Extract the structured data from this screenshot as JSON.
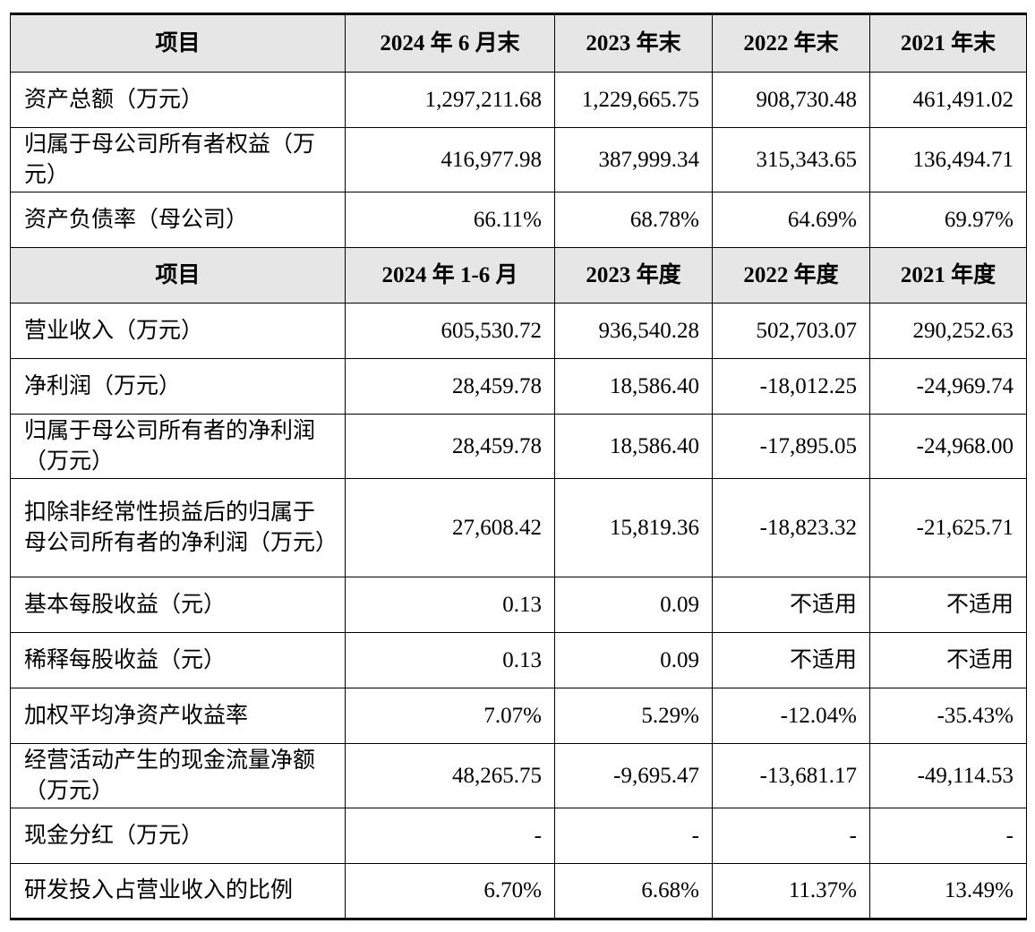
{
  "header_1": [
    "项目",
    "2024 年 6 月末",
    "2023 年末",
    "2022 年末",
    "2021 年末"
  ],
  "section_1_rows": [
    {
      "label": "资产总额（万元）",
      "values": [
        "1,297,211.68",
        "1,229,665.75",
        "908,730.48",
        "461,491.02"
      ]
    },
    {
      "label": "归属于母公司所有者权益（万元）",
      "values": [
        "416,977.98",
        "387,999.34",
        "315,343.65",
        "136,494.71"
      ]
    },
    {
      "label": "资产负债率（母公司）",
      "values": [
        "66.11%",
        "68.78%",
        "64.69%",
        "69.97%"
      ]
    }
  ],
  "header_2": [
    "项目",
    "2024 年 1-6 月",
    "2023 年度",
    "2022 年度",
    "2021 年度"
  ],
  "section_2_rows": [
    {
      "label": "营业收入（万元）",
      "values": [
        "605,530.72",
        "936,540.28",
        "502,703.07",
        "290,252.63"
      ]
    },
    {
      "label": "净利润（万元）",
      "values": [
        "28,459.78",
        "18,586.40",
        "-18,012.25",
        "-24,969.74"
      ]
    },
    {
      "label": "归属于母公司所有者的净利润（万元）",
      "values": [
        "28,459.78",
        "18,586.40",
        "-17,895.05",
        "-24,968.00"
      ]
    },
    {
      "label": "扣除非经常性损益后的归属于母公司所有者的净利润（万元）",
      "values": [
        "27,608.42",
        "15,819.36",
        "-18,823.32",
        "-21,625.71"
      ]
    },
    {
      "label": "基本每股收益（元）",
      "values": [
        "0.13",
        "0.09",
        "不适用",
        "不适用"
      ]
    },
    {
      "label": "稀释每股收益（元）",
      "values": [
        "0.13",
        "0.09",
        "不适用",
        "不适用"
      ]
    },
    {
      "label": "加权平均净资产收益率",
      "values": [
        "7.07%",
        "5.29%",
        "-12.04%",
        "-35.43%"
      ]
    },
    {
      "label": "经营活动产生的现金流量净额（万元）",
      "values": [
        "48,265.75",
        "-9,695.47",
        "-13,681.17",
        "-49,114.53"
      ]
    },
    {
      "label": "现金分红（万元）",
      "values": [
        "-",
        "-",
        "-",
        "-"
      ]
    },
    {
      "label": "研发投入占营业收入的比例",
      "values": [
        "6.70%",
        "6.68%",
        "11.37%",
        "13.49%"
      ]
    }
  ]
}
